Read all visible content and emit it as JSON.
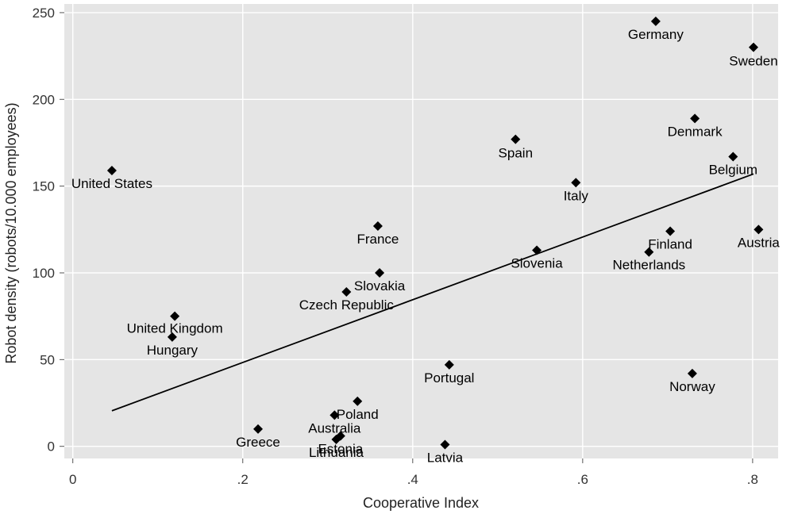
{
  "chart_data": {
    "type": "scatter",
    "title": "",
    "xlabel": "Cooperative Index",
    "ylabel": "Robot density (robots/10.000 employees)",
    "xlim": [
      -0.01,
      0.83
    ],
    "ylim": [
      -7,
      255
    ],
    "xticks": [
      {
        "value": 0,
        "label": "0"
      },
      {
        "value": 0.2,
        "label": ".2"
      },
      {
        "value": 0.4,
        "label": ".4"
      },
      {
        "value": 0.6,
        "label": ".6"
      },
      {
        "value": 0.8,
        "label": ".8"
      }
    ],
    "yticks": [
      {
        "value": 0,
        "label": "0"
      },
      {
        "value": 50,
        "label": "50"
      },
      {
        "value": 100,
        "label": "100"
      },
      {
        "value": 150,
        "label": "150"
      },
      {
        "value": 200,
        "label": "200"
      },
      {
        "value": 250,
        "label": "250"
      }
    ],
    "grid": true,
    "colors": {
      "panel": "#e5e5e5",
      "grid": "#ffffff",
      "marker": "#000000",
      "fit_line": "#000000"
    },
    "points": [
      {
        "label": "Germany",
        "x": 0.686,
        "y": 245
      },
      {
        "label": "Sweden",
        "x": 0.801,
        "y": 230
      },
      {
        "label": "Denmark",
        "x": 0.732,
        "y": 189
      },
      {
        "label": "Spain",
        "x": 0.521,
        "y": 177
      },
      {
        "label": "Belgium",
        "x": 0.777,
        "y": 167
      },
      {
        "label": "United States",
        "x": 0.046,
        "y": 159
      },
      {
        "label": "Italy",
        "x": 0.592,
        "y": 152
      },
      {
        "label": "France",
        "x": 0.359,
        "y": 127
      },
      {
        "label": "Finland",
        "x": 0.703,
        "y": 124
      },
      {
        "label": "Austria",
        "x": 0.807,
        "y": 125
      },
      {
        "label": "Slovenia",
        "x": 0.546,
        "y": 113
      },
      {
        "label": "Netherlands",
        "x": 0.678,
        "y": 112
      },
      {
        "label": "Slovakia",
        "x": 0.361,
        "y": 100
      },
      {
        "label": "Czech Republic",
        "x": 0.322,
        "y": 89
      },
      {
        "label": "United Kingdom",
        "x": 0.12,
        "y": 75
      },
      {
        "label": "Hungary",
        "x": 0.117,
        "y": 63
      },
      {
        "label": "Portugal",
        "x": 0.443,
        "y": 47
      },
      {
        "label": "Norway",
        "x": 0.729,
        "y": 42
      },
      {
        "label": "Poland",
        "x": 0.335,
        "y": 26
      },
      {
        "label": "Australia",
        "x": 0.308,
        "y": 18
      },
      {
        "label": "Greece",
        "x": 0.218,
        "y": 10
      },
      {
        "label": "Estonia",
        "x": 0.315,
        "y": 6
      },
      {
        "label": "Lithuania",
        "x": 0.31,
        "y": 4
      },
      {
        "label": "Latvia",
        "x": 0.438,
        "y": 1
      }
    ],
    "fit_line": {
      "x": [
        0.046,
        0.801
      ],
      "y": [
        20.5,
        157
      ]
    }
  }
}
